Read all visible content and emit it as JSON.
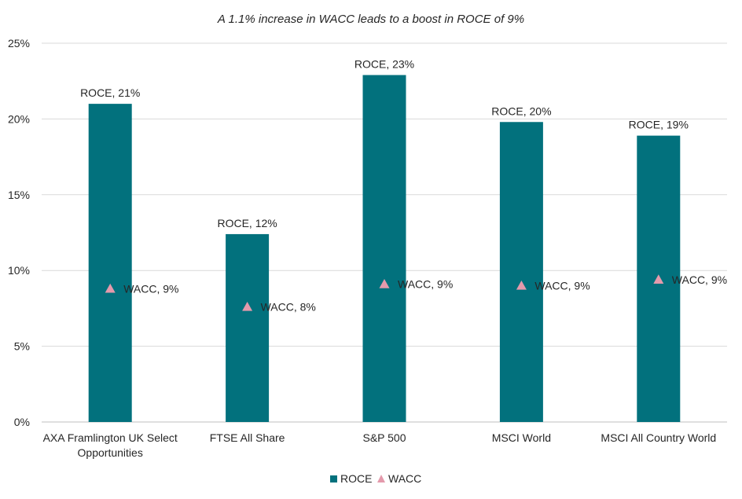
{
  "chart_data": {
    "type": "bar",
    "title": "A 1.1% increase in WACC leads to a boost in ROCE of 9%",
    "xlabel": "",
    "ylabel": "",
    "ylim": [
      0,
      25
    ],
    "yticks": [
      0,
      5,
      10,
      15,
      20,
      25
    ],
    "ytick_labels": [
      "0%",
      "5%",
      "10%",
      "15%",
      "20%",
      "25%"
    ],
    "categories": [
      [
        "AXA Framlington UK Select",
        "Opportunities"
      ],
      [
        "FTSE All Share"
      ],
      [
        "S&P 500"
      ],
      [
        "MSCI World"
      ],
      [
        "MSCI All Country World"
      ]
    ],
    "series": [
      {
        "name": "ROCE",
        "mark": "bar",
        "color": "#02717d",
        "values": [
          21.0,
          12.4,
          22.9,
          19.8,
          18.9
        ],
        "labels": [
          "ROCE, 21%",
          "ROCE, 12%",
          "ROCE, 23%",
          "ROCE, 20%",
          "ROCE, 19%"
        ]
      },
      {
        "name": "WACC",
        "mark": "triangle",
        "color": "#e49aac",
        "values": [
          8.8,
          7.6,
          9.1,
          9.0,
          9.4
        ],
        "labels": [
          "WACC, 9%",
          "WACC, 8%",
          "WACC, 9%",
          "WACC, 9%",
          "WACC, 9%"
        ]
      }
    ],
    "grid": true,
    "legend": "bottom-center"
  }
}
